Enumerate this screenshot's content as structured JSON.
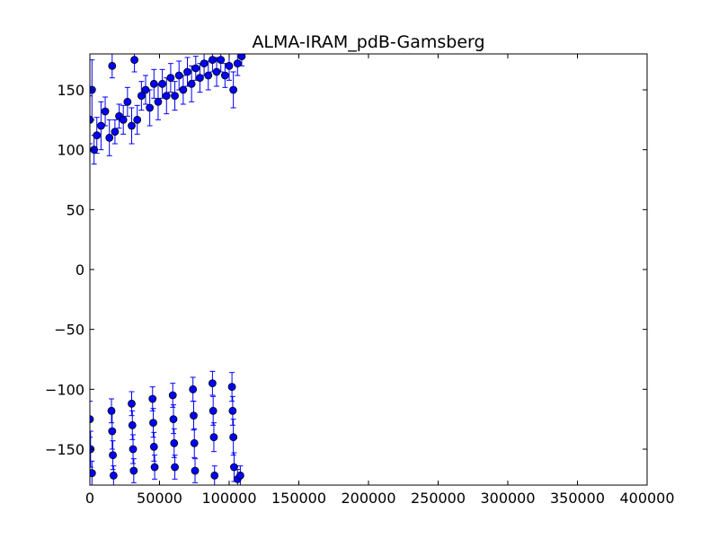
{
  "chart_data": {
    "type": "scatter",
    "title": "ALMA-IRAM_pdB-Gamsberg",
    "xlabel": "",
    "ylabel": "",
    "xlim": [
      0,
      400000
    ],
    "ylim": [
      -180,
      180
    ],
    "grid": false,
    "legend": "none",
    "marker_color": "#0000ff",
    "marker_edge_color": "#000000",
    "errorbar_color": "#0000ff",
    "x_ticks": [
      0,
      50000,
      100000,
      150000,
      200000,
      250000,
      300000,
      350000,
      400000
    ],
    "x_tick_labels": [
      "0",
      "50000",
      "100000",
      "150000",
      "200000",
      "250000",
      "300000",
      "350000",
      "400000"
    ],
    "y_ticks": [
      150,
      100,
      50,
      0,
      -50,
      -100,
      -150
    ],
    "y_tick_labels": [
      "150",
      "100",
      "50",
      "0",
      "−50",
      "−100",
      "−150"
    ],
    "series": [
      {
        "marker": "circle",
        "points": [
          {
            "x": 0,
            "y": 125,
            "err": 20
          },
          {
            "x": 1500,
            "y": 150,
            "err": 25
          },
          {
            "x": 3000,
            "y": 100,
            "err": 12
          },
          {
            "x": 5000,
            "y": 112,
            "err": 15
          },
          {
            "x": 8000,
            "y": 120,
            "err": 20
          },
          {
            "x": 11000,
            "y": 132,
            "err": 12
          },
          {
            "x": 14000,
            "y": 110,
            "err": 15
          },
          {
            "x": 16000,
            "y": 170,
            "err": 10
          },
          {
            "x": 18000,
            "y": 115,
            "err": 10
          },
          {
            "x": 21000,
            "y": 128,
            "err": 10
          },
          {
            "x": 24000,
            "y": 125,
            "err": 12
          },
          {
            "x": 27000,
            "y": 140,
            "err": 12
          },
          {
            "x": 30000,
            "y": 120,
            "err": 15
          },
          {
            "x": 32000,
            "y": 175,
            "err": 10
          },
          {
            "x": 34000,
            "y": 125,
            "err": 12
          },
          {
            "x": 37000,
            "y": 145,
            "err": 12
          },
          {
            "x": 40000,
            "y": 150,
            "err": 12
          },
          {
            "x": 43000,
            "y": 135,
            "err": 15
          },
          {
            "x": 46000,
            "y": 155,
            "err": 12
          },
          {
            "x": 49000,
            "y": 140,
            "err": 15
          },
          {
            "x": 52000,
            "y": 155,
            "err": 12
          },
          {
            "x": 55000,
            "y": 145,
            "err": 15
          },
          {
            "x": 58000,
            "y": 160,
            "err": 12
          },
          {
            "x": 61000,
            "y": 145,
            "err": 12
          },
          {
            "x": 64000,
            "y": 162,
            "err": 12
          },
          {
            "x": 67000,
            "y": 150,
            "err": 12
          },
          {
            "x": 70000,
            "y": 165,
            "err": 12
          },
          {
            "x": 73000,
            "y": 155,
            "err": 15
          },
          {
            "x": 76000,
            "y": 168,
            "err": 10
          },
          {
            "x": 79000,
            "y": 160,
            "err": 12
          },
          {
            "x": 82000,
            "y": 172,
            "err": 10
          },
          {
            "x": 85000,
            "y": 162,
            "err": 12
          },
          {
            "x": 88000,
            "y": 175,
            "err": 10
          },
          {
            "x": 91000,
            "y": 165,
            "err": 12
          },
          {
            "x": 94000,
            "y": 175,
            "err": 10
          },
          {
            "x": 97000,
            "y": 162,
            "err": 10
          },
          {
            "x": 100000,
            "y": 170,
            "err": 12
          },
          {
            "x": 103000,
            "y": 150,
            "err": 15
          },
          {
            "x": 106000,
            "y": 172,
            "err": 10
          },
          {
            "x": 109000,
            "y": 178,
            "err": 8
          },
          {
            "x": 0,
            "y": -125,
            "err": 15
          },
          {
            "x": 500,
            "y": -150,
            "err": 15
          },
          {
            "x": 1500,
            "y": -170,
            "err": 10
          },
          {
            "x": 15500,
            "y": -118,
            "err": 10
          },
          {
            "x": 16000,
            "y": -135,
            "err": 15
          },
          {
            "x": 16500,
            "y": -155,
            "err": 12
          },
          {
            "x": 17000,
            "y": -172,
            "err": 8
          },
          {
            "x": 30000,
            "y": -112,
            "err": 10
          },
          {
            "x": 30500,
            "y": -130,
            "err": 12
          },
          {
            "x": 31000,
            "y": -150,
            "err": 12
          },
          {
            "x": 31500,
            "y": -168,
            "err": 10
          },
          {
            "x": 45000,
            "y": -108,
            "err": 10
          },
          {
            "x": 45500,
            "y": -128,
            "err": 12
          },
          {
            "x": 46000,
            "y": -148,
            "err": 12
          },
          {
            "x": 46500,
            "y": -165,
            "err": 10
          },
          {
            "x": 59500,
            "y": -105,
            "err": 10
          },
          {
            "x": 60000,
            "y": -125,
            "err": 12
          },
          {
            "x": 60500,
            "y": -145,
            "err": 12
          },
          {
            "x": 61000,
            "y": -165,
            "err": 10
          },
          {
            "x": 74000,
            "y": -100,
            "err": 10
          },
          {
            "x": 74500,
            "y": -122,
            "err": 12
          },
          {
            "x": 75000,
            "y": -145,
            "err": 12
          },
          {
            "x": 75500,
            "y": -168,
            "err": 10
          },
          {
            "x": 88000,
            "y": -95,
            "err": 10
          },
          {
            "x": 88500,
            "y": -118,
            "err": 12
          },
          {
            "x": 89000,
            "y": -140,
            "err": 12
          },
          {
            "x": 89500,
            "y": -172,
            "err": 8
          },
          {
            "x": 102000,
            "y": -98,
            "err": 12
          },
          {
            "x": 102500,
            "y": -118,
            "err": 12
          },
          {
            "x": 103000,
            "y": -140,
            "err": 15
          },
          {
            "x": 103500,
            "y": -165,
            "err": 12
          },
          {
            "x": 106000,
            "y": -175,
            "err": 8
          },
          {
            "x": 108000,
            "y": -172,
            "err": 8
          }
        ]
      }
    ]
  }
}
